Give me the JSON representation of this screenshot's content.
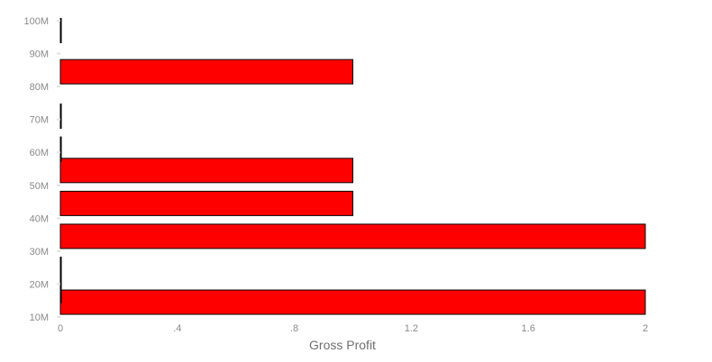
{
  "chart_data": {
    "type": "bar",
    "orientation": "horizontal",
    "title": "",
    "xlabel": "Gross Profit",
    "ylabel": "",
    "xlim": [
      0,
      2
    ],
    "ylim": [
      10000000,
      100000000
    ],
    "x_ticks": [
      {
        "value": 0,
        "label": "0"
      },
      {
        "value": 0.4,
        "label": ".4"
      },
      {
        "value": 0.8,
        "label": ".8"
      },
      {
        "value": 1.2,
        "label": "1.2"
      },
      {
        "value": 1.6,
        "label": "1.6"
      },
      {
        "value": 2,
        "label": "2"
      }
    ],
    "y_ticks": [
      {
        "value": 10000000,
        "label": "10M"
      },
      {
        "value": 20000000,
        "label": "20M"
      },
      {
        "value": 30000000,
        "label": "30M"
      },
      {
        "value": 40000000,
        "label": "40M"
      },
      {
        "value": 50000000,
        "label": "50M"
      },
      {
        "value": 60000000,
        "label": "60M"
      },
      {
        "value": 70000000,
        "label": "70M"
      },
      {
        "value": 80000000,
        "label": "80M"
      },
      {
        "value": 90000000,
        "label": "90M"
      },
      {
        "value": 100000000,
        "label": "100M"
      }
    ],
    "bars": [
      {
        "y": 14500000,
        "value": 2
      },
      {
        "y": 18000000,
        "value": 0
      },
      {
        "y": 24500000,
        "value": 0
      },
      {
        "y": 34500000,
        "value": 2
      },
      {
        "y": 44500000,
        "value": 1
      },
      {
        "y": 54500000,
        "value": 1
      },
      {
        "y": 61000000,
        "value": 0
      },
      {
        "y": 71000000,
        "value": 0
      },
      {
        "y": 84500000,
        "value": 1
      },
      {
        "y": 97000000,
        "value": 0
      }
    ],
    "bar_color": "#ff0000",
    "bar_stroke": "#000000",
    "grid": false,
    "legend": "none"
  }
}
